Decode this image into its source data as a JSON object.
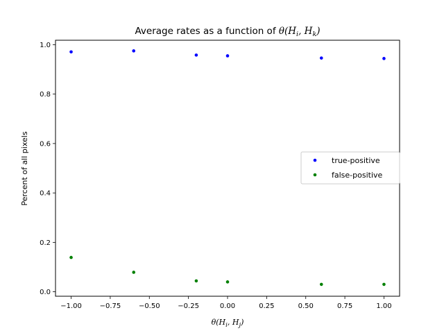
{
  "chart_data": {
    "type": "scatter",
    "title": {
      "prefix": "Average rates as a function of ",
      "math": "θ(H",
      "sub1": "i",
      "mid": ", H",
      "sub2": "k",
      "suffix": ")"
    },
    "xlabel": {
      "math": "θ(H",
      "sub1": "i",
      "mid": ", H",
      "sub2": "j",
      "suffix": ")"
    },
    "ylabel": "Percent of all pixels",
    "xlim": [
      -1.1,
      1.1
    ],
    "ylim": [
      -0.018,
      1.018
    ],
    "xticks": [
      -1.0,
      -0.75,
      -0.5,
      -0.25,
      0.0,
      0.25,
      0.5,
      0.75,
      1.0
    ],
    "xtick_labels": [
      "−1.00",
      "−0.75",
      "−0.50",
      "−0.25",
      "0.00",
      "0.25",
      "0.50",
      "0.75",
      "1.00"
    ],
    "yticks": [
      0.0,
      0.2,
      0.4,
      0.6,
      0.8,
      1.0
    ],
    "ytick_labels": [
      "0.0",
      "0.2",
      "0.4",
      "0.6",
      "0.8",
      "1.0"
    ],
    "grid": false,
    "legend": "center-right",
    "series": [
      {
        "name": "true-positive",
        "color": "#0000ff",
        "x": [
          -1.0,
          -0.6,
          -0.2,
          0.0,
          0.6,
          1.0
        ],
        "y": [
          0.971,
          0.975,
          0.958,
          0.955,
          0.946,
          0.944
        ]
      },
      {
        "name": "false-positive",
        "color": "#008000",
        "x": [
          -1.0,
          -0.6,
          -0.2,
          0.0,
          0.6,
          1.0
        ],
        "y": [
          0.139,
          0.079,
          0.044,
          0.04,
          0.03,
          0.03
        ]
      }
    ]
  }
}
